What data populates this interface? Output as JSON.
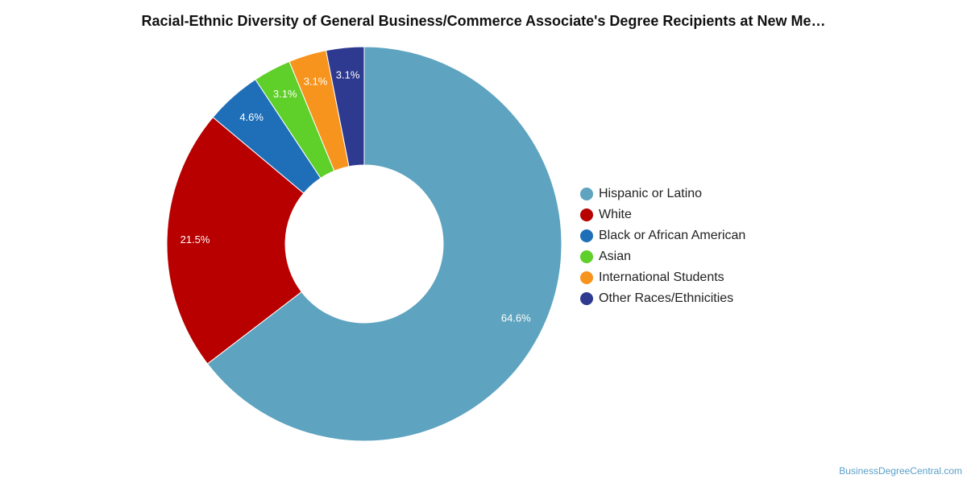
{
  "chart_data": {
    "type": "pie",
    "title": "Racial-Ethnic Diversity of General Business/Commerce Associate's Degree Recipients at New Me…",
    "donut": true,
    "legend_position": "right",
    "slices": [
      {
        "label": "Hispanic or Latino",
        "value": 64.6,
        "value_label": "64.6%",
        "color": "#5ea3bf"
      },
      {
        "label": "White",
        "value": 21.5,
        "value_label": "21.5%",
        "color": "#b80000"
      },
      {
        "label": "Black or African American",
        "value": 4.6,
        "value_label": "4.6%",
        "color": "#1f6fb8"
      },
      {
        "label": "Asian",
        "value": 3.1,
        "value_label": "3.1%",
        "color": "#5fcf2a"
      },
      {
        "label": "International Students",
        "value": 3.1,
        "value_label": "3.1%",
        "color": "#f7941d"
      },
      {
        "label": "Other Races/Ethnicities",
        "value": 3.1,
        "value_label": "3.1%",
        "color": "#2e3a8f"
      }
    ]
  },
  "source_label": "BusinessDegreeCentral.com"
}
